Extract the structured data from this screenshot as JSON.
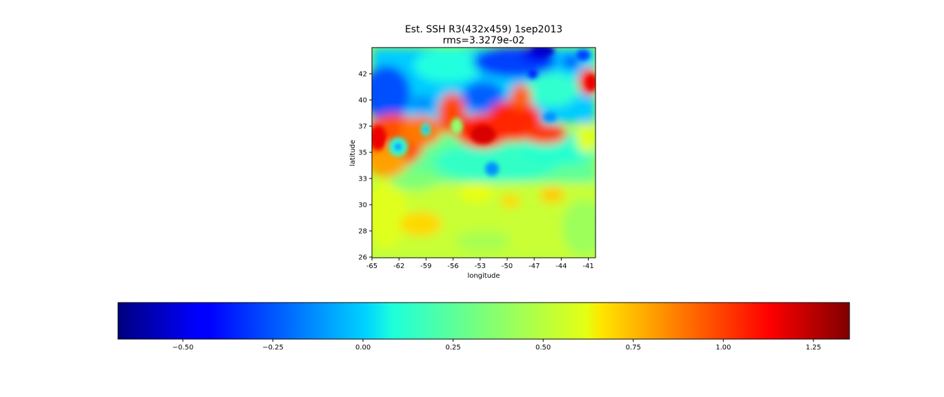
{
  "chart_data": {
    "type": "heatmap",
    "title_line1": "Est. SSH R3(432x459) 1sep2013",
    "title_line2": "rms=3.3279e-02",
    "xlabel": "longitude",
    "ylabel": "latitude",
    "x_ticks": [
      "-65",
      "-62",
      "-59",
      "-56",
      "-53",
      "-50",
      "-47",
      "-44",
      "-41"
    ],
    "y_ticks": [
      "26",
      "28",
      "30",
      "33",
      "35",
      "37",
      "40",
      "42"
    ],
    "colormap": "jet",
    "colorbar": {
      "vmin": -0.68,
      "vmax": 1.35,
      "ticks": [
        "−0.50",
        "−0.25",
        "0.00",
        "0.25",
        "0.50",
        "0.75",
        "1.00",
        "1.25"
      ]
    },
    "grid": false
  }
}
